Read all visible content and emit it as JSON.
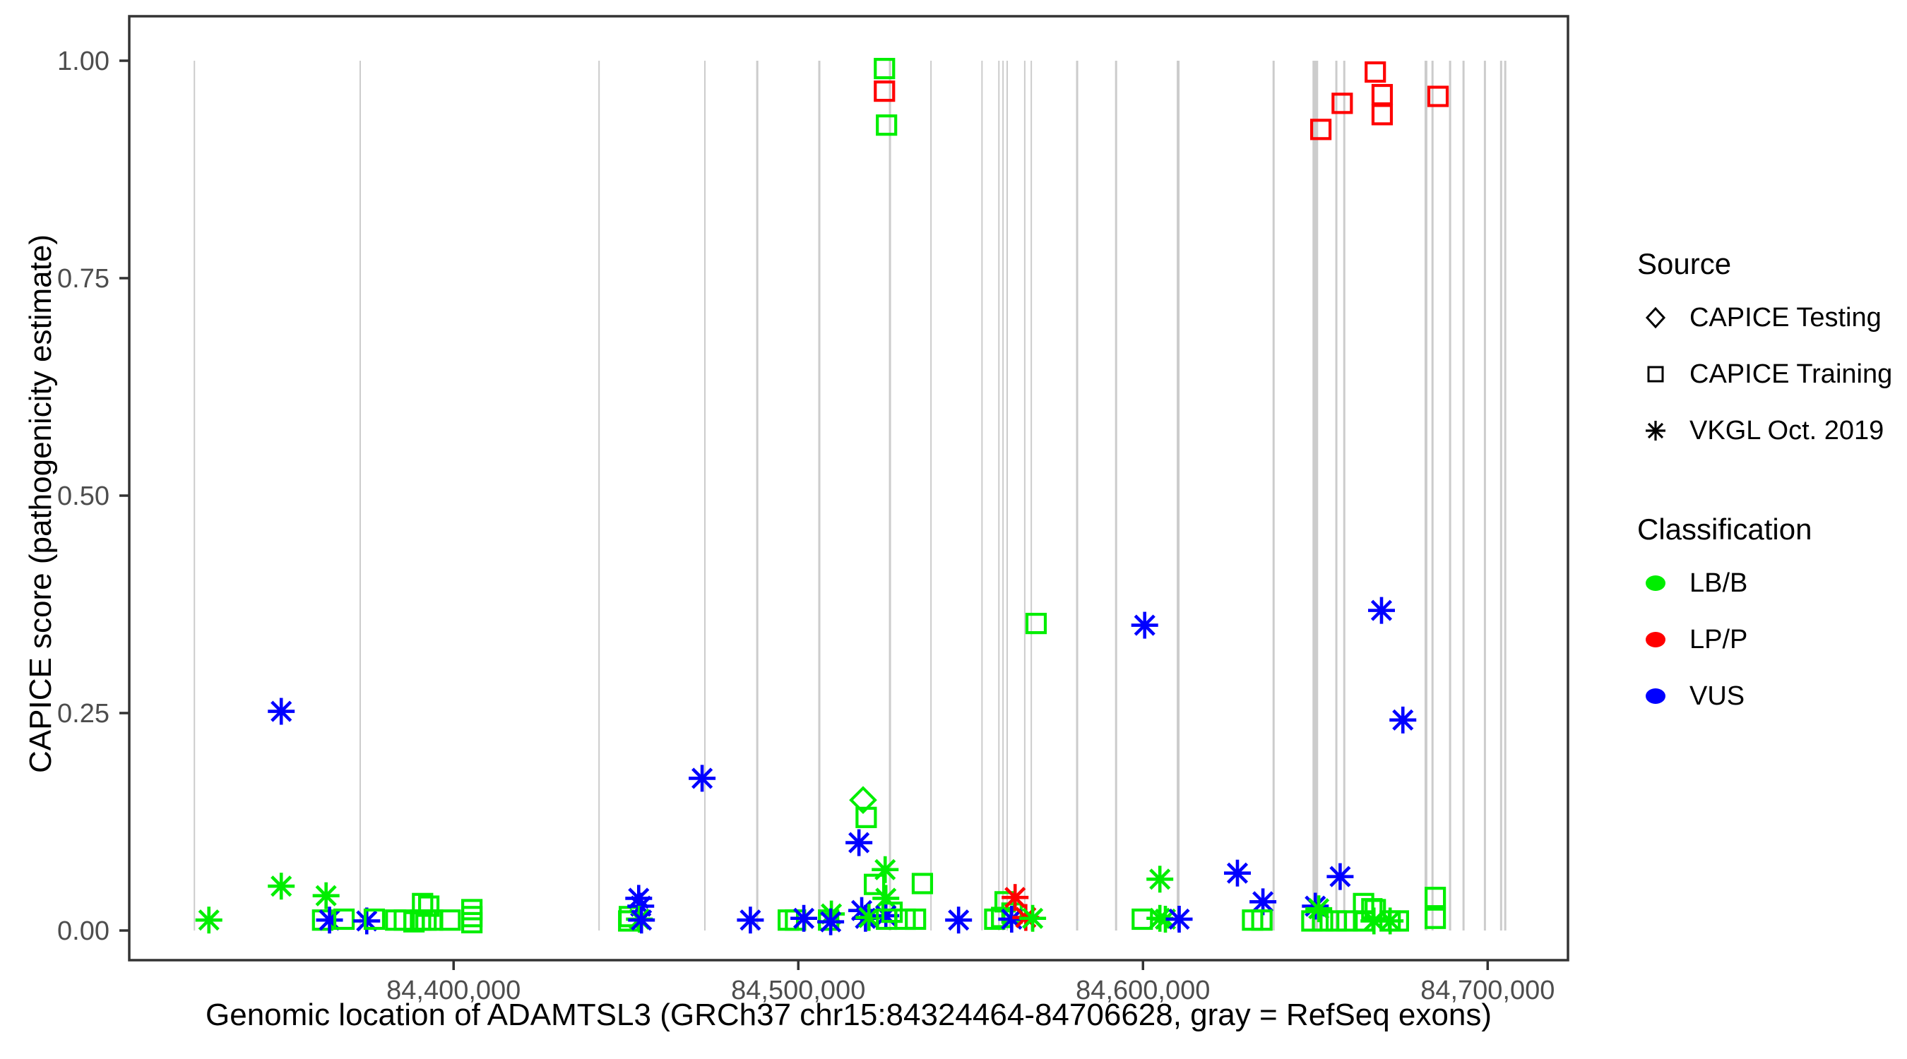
{
  "figure": {
    "y_axis_title": "CAPICE score (pathogenicity estimate)",
    "x_axis_title": "Genomic location of ADAMTSL3 (GRCh37 chr15:84324464-84706628, gray = RefSeq exons)"
  },
  "colors": {
    "LB": "#00ee00",
    "LP": "#ff0000",
    "VUS": "#0000ff",
    "exon": "#cccccc",
    "tick_text": "#4d4d4d",
    "panel_border": "#333333",
    "legend_shape": "#000000"
  },
  "legend": {
    "source": {
      "title": "Source",
      "items": [
        {
          "shape": "diamond",
          "label": "CAPICE Testing"
        },
        {
          "shape": "square",
          "label": "CAPICE Training"
        },
        {
          "shape": "asterisk",
          "label": "VKGL Oct. 2019"
        }
      ]
    },
    "classification": {
      "title": "Classification",
      "items": [
        {
          "cls": "LB",
          "label": "LB/B"
        },
        {
          "cls": "LP",
          "label": "LP/P"
        },
        {
          "cls": "VUS",
          "label": "VUS"
        }
      ]
    }
  },
  "chart_data": {
    "type": "scatter",
    "title": "",
    "xlabel": "Genomic location of ADAMTSL3 (GRCh37 chr15:84324464-84706628, gray = RefSeq exons)",
    "ylabel": "CAPICE score (pathogenicity estimate)",
    "xlim": [
      84305900,
      84723300
    ],
    "ylim": [
      0,
      1
    ],
    "grid": false,
    "legend_position": "right",
    "x_ticks": [
      {
        "v": 84400000,
        "label": "84,400,000"
      },
      {
        "v": 84500000,
        "label": "84,500,000"
      },
      {
        "v": 84600000,
        "label": "84,600,000"
      },
      {
        "v": 84700000,
        "label": "84,700,000"
      }
    ],
    "y_ticks": [
      {
        "v": 0.0,
        "label": "0.00"
      },
      {
        "v": 0.25,
        "label": "0.25"
      },
      {
        "v": 0.5,
        "label": "0.50"
      },
      {
        "v": 0.75,
        "label": "0.75"
      },
      {
        "v": 1.0,
        "label": "1.00"
      }
    ],
    "refseq_exons": [
      {
        "x": 84324800,
        "thickness": 2
      },
      {
        "x": 84372900,
        "thickness": 2
      },
      {
        "x": 84442200,
        "thickness": 2
      },
      {
        "x": 84472900,
        "thickness": 2
      },
      {
        "x": 84488100,
        "thickness": 3
      },
      {
        "x": 84506100,
        "thickness": 3
      },
      {
        "x": 84526600,
        "thickness": 3
      },
      {
        "x": 84538500,
        "thickness": 2
      },
      {
        "x": 84553300,
        "thickness": 2
      },
      {
        "x": 84558200,
        "thickness": 2
      },
      {
        "x": 84559400,
        "thickness": 2
      },
      {
        "x": 84560600,
        "thickness": 2
      },
      {
        "x": 84565700,
        "thickness": 2
      },
      {
        "x": 84567600,
        "thickness": 2
      },
      {
        "x": 84580900,
        "thickness": 3
      },
      {
        "x": 84592200,
        "thickness": 3
      },
      {
        "x": 84610200,
        "thickness": 4
      },
      {
        "x": 84637900,
        "thickness": 3
      },
      {
        "x": 84650000,
        "thickness": 8
      },
      {
        "x": 84656100,
        "thickness": 3
      },
      {
        "x": 84658400,
        "thickness": 3
      },
      {
        "x": 84682100,
        "thickness": 4
      },
      {
        "x": 84684000,
        "thickness": 3
      },
      {
        "x": 84689100,
        "thickness": 3
      },
      {
        "x": 84693000,
        "thickness": 3
      },
      {
        "x": 84699200,
        "thickness": 3
      },
      {
        "x": 84703900,
        "thickness": 3
      },
      {
        "x": 84705100,
        "thickness": 3
      }
    ],
    "points": [
      {
        "x": 84329000,
        "y": 0.012,
        "shape": "asterisk",
        "cls": "LB"
      },
      {
        "x": 84350000,
        "y": 0.252,
        "shape": "asterisk",
        "cls": "VUS"
      },
      {
        "x": 84350000,
        "y": 0.051,
        "shape": "asterisk",
        "cls": "LB"
      },
      {
        "x": 84362000,
        "y": 0.012,
        "shape": "square",
        "cls": "LB"
      },
      {
        "x": 84363000,
        "y": 0.04,
        "shape": "asterisk",
        "cls": "LB"
      },
      {
        "x": 84364000,
        "y": 0.012,
        "shape": "asterisk",
        "cls": "VUS"
      },
      {
        "x": 84368200,
        "y": 0.013,
        "shape": "square",
        "cls": "LB"
      },
      {
        "x": 84374800,
        "y": 0.011,
        "shape": "asterisk",
        "cls": "VUS"
      },
      {
        "x": 84377000,
        "y": 0.013,
        "shape": "square",
        "cls": "LB"
      },
      {
        "x": 84383200,
        "y": 0.012,
        "shape": "square",
        "cls": "LB"
      },
      {
        "x": 84385700,
        "y": 0.012,
        "shape": "square",
        "cls": "LB"
      },
      {
        "x": 84388500,
        "y": 0.01,
        "shape": "square",
        "cls": "LB"
      },
      {
        "x": 84390400,
        "y": 0.012,
        "shape": "square",
        "cls": "LB"
      },
      {
        "x": 84392000,
        "y": 0.012,
        "shape": "square",
        "cls": "LB"
      },
      {
        "x": 84393900,
        "y": 0.012,
        "shape": "square",
        "cls": "LB"
      },
      {
        "x": 84391000,
        "y": 0.031,
        "shape": "square",
        "cls": "LB"
      },
      {
        "x": 84392800,
        "y": 0.028,
        "shape": "square",
        "cls": "LB"
      },
      {
        "x": 84399000,
        "y": 0.012,
        "shape": "square",
        "cls": "LB"
      },
      {
        "x": 84405300,
        "y": 0.024,
        "shape": "square",
        "cls": "LB"
      },
      {
        "x": 84405300,
        "y": 0.016,
        "shape": "square",
        "cls": "LB"
      },
      {
        "x": 84405300,
        "y": 0.009,
        "shape": "square",
        "cls": "LB"
      },
      {
        "x": 84450800,
        "y": 0.011,
        "shape": "square",
        "cls": "LB"
      },
      {
        "x": 84451000,
        "y": 0.016,
        "shape": "square",
        "cls": "LB"
      },
      {
        "x": 84453700,
        "y": 0.037,
        "shape": "asterisk",
        "cls": "VUS"
      },
      {
        "x": 84454300,
        "y": 0.028,
        "shape": "asterisk",
        "cls": "VUS"
      },
      {
        "x": 84453900,
        "y": 0.013,
        "shape": "asterisk",
        "cls": "LB"
      },
      {
        "x": 84454500,
        "y": 0.012,
        "shape": "asterisk",
        "cls": "VUS"
      },
      {
        "x": 84472100,
        "y": 0.175,
        "shape": "asterisk",
        "cls": "VUS"
      },
      {
        "x": 84486100,
        "y": 0.012,
        "shape": "asterisk",
        "cls": "VUS"
      },
      {
        "x": 84497100,
        "y": 0.012,
        "shape": "square",
        "cls": "LB"
      },
      {
        "x": 84499200,
        "y": 0.012,
        "shape": "square",
        "cls": "LB"
      },
      {
        "x": 84501600,
        "y": 0.014,
        "shape": "asterisk",
        "cls": "VUS"
      },
      {
        "x": 84508800,
        "y": 0.012,
        "shape": "square",
        "cls": "LB"
      },
      {
        "x": 84509600,
        "y": 0.019,
        "shape": "asterisk",
        "cls": "LB"
      },
      {
        "x": 84509400,
        "y": 0.01,
        "shape": "asterisk",
        "cls": "VUS"
      },
      {
        "x": 84518800,
        "y": 0.15,
        "shape": "diamond",
        "cls": "LB"
      },
      {
        "x": 84519700,
        "y": 0.13,
        "shape": "square",
        "cls": "LB"
      },
      {
        "x": 84517600,
        "y": 0.101,
        "shape": "asterisk",
        "cls": "VUS"
      },
      {
        "x": 84525200,
        "y": 0.07,
        "shape": "asterisk",
        "cls": "LB"
      },
      {
        "x": 84522100,
        "y": 0.053,
        "shape": "square",
        "cls": "LB"
      },
      {
        "x": 84525400,
        "y": 0.037,
        "shape": "asterisk",
        "cls": "LB"
      },
      {
        "x": 84518400,
        "y": 0.023,
        "shape": "asterisk",
        "cls": "VUS"
      },
      {
        "x": 84519500,
        "y": 0.014,
        "shape": "asterisk",
        "cls": "VUS"
      },
      {
        "x": 84520500,
        "y": 0.015,
        "shape": "asterisk",
        "cls": "LB"
      },
      {
        "x": 84525400,
        "y": 0.017,
        "shape": "asterisk",
        "cls": "VUS"
      },
      {
        "x": 84525600,
        "y": 0.013,
        "shape": "square",
        "cls": "LB"
      },
      {
        "x": 84527200,
        "y": 0.021,
        "shape": "square",
        "cls": "LB"
      },
      {
        "x": 84531000,
        "y": 0.013,
        "shape": "square",
        "cls": "LB"
      },
      {
        "x": 84534000,
        "y": 0.013,
        "shape": "square",
        "cls": "LB"
      },
      {
        "x": 84536000,
        "y": 0.054,
        "shape": "square",
        "cls": "LB"
      },
      {
        "x": 84546500,
        "y": 0.012,
        "shape": "asterisk",
        "cls": "VUS"
      },
      {
        "x": 84525000,
        "y": 0.991,
        "shape": "square",
        "cls": "LB"
      },
      {
        "x": 84525000,
        "y": 0.965,
        "shape": "square",
        "cls": "LP"
      },
      {
        "x": 84525600,
        "y": 0.926,
        "shape": "square",
        "cls": "LB"
      },
      {
        "x": 84557000,
        "y": 0.013,
        "shape": "square",
        "cls": "LB"
      },
      {
        "x": 84559000,
        "y": 0.015,
        "shape": "square",
        "cls": "LB"
      },
      {
        "x": 84560000,
        "y": 0.033,
        "shape": "square",
        "cls": "LB"
      },
      {
        "x": 84562000,
        "y": 0.02,
        "shape": "square",
        "cls": "LB"
      },
      {
        "x": 84561900,
        "y": 0.013,
        "shape": "asterisk",
        "cls": "VUS"
      },
      {
        "x": 84562900,
        "y": 0.038,
        "shape": "asterisk",
        "cls": "LP"
      },
      {
        "x": 84566000,
        "y": 0.015,
        "shape": "asterisk",
        "cls": "LP"
      },
      {
        "x": 84568000,
        "y": 0.014,
        "shape": "asterisk",
        "cls": "LB"
      },
      {
        "x": 84569000,
        "y": 0.353,
        "shape": "square",
        "cls": "LB"
      },
      {
        "x": 84600500,
        "y": 0.351,
        "shape": "asterisk",
        "cls": "VUS"
      },
      {
        "x": 84599800,
        "y": 0.013,
        "shape": "square",
        "cls": "LB"
      },
      {
        "x": 84604900,
        "y": 0.059,
        "shape": "asterisk",
        "cls": "LB"
      },
      {
        "x": 84604900,
        "y": 0.014,
        "shape": "asterisk",
        "cls": "LB"
      },
      {
        "x": 84606500,
        "y": 0.013,
        "shape": "asterisk",
        "cls": "LB"
      },
      {
        "x": 84610500,
        "y": 0.013,
        "shape": "asterisk",
        "cls": "VUS"
      },
      {
        "x": 84627400,
        "y": 0.066,
        "shape": "asterisk",
        "cls": "VUS"
      },
      {
        "x": 84634800,
        "y": 0.033,
        "shape": "asterisk",
        "cls": "VUS"
      },
      {
        "x": 84631800,
        "y": 0.012,
        "shape": "square",
        "cls": "LB"
      },
      {
        "x": 84634500,
        "y": 0.012,
        "shape": "square",
        "cls": "LB"
      },
      {
        "x": 84650000,
        "y": 0.028,
        "shape": "asterisk",
        "cls": "VUS"
      },
      {
        "x": 84651000,
        "y": 0.025,
        "shape": "asterisk",
        "cls": "LB"
      },
      {
        "x": 84649000,
        "y": 0.011,
        "shape": "square",
        "cls": "LB"
      },
      {
        "x": 84652100,
        "y": 0.011,
        "shape": "square",
        "cls": "LB"
      },
      {
        "x": 84657200,
        "y": 0.062,
        "shape": "asterisk",
        "cls": "VUS"
      },
      {
        "x": 84656100,
        "y": 0.011,
        "shape": "square",
        "cls": "LB"
      },
      {
        "x": 84659200,
        "y": 0.011,
        "shape": "square",
        "cls": "LB"
      },
      {
        "x": 84664000,
        "y": 0.031,
        "shape": "square",
        "cls": "LB"
      },
      {
        "x": 84666400,
        "y": 0.025,
        "shape": "square",
        "cls": "LB"
      },
      {
        "x": 84667400,
        "y": 0.024,
        "shape": "square",
        "cls": "LB"
      },
      {
        "x": 84664000,
        "y": 0.011,
        "shape": "square",
        "cls": "LB"
      },
      {
        "x": 84667000,
        "y": 0.011,
        "shape": "asterisk",
        "cls": "LB"
      },
      {
        "x": 84671700,
        "y": 0.011,
        "shape": "square",
        "cls": "LB"
      },
      {
        "x": 84671700,
        "y": 0.011,
        "shape": "asterisk",
        "cls": "LB"
      },
      {
        "x": 84674100,
        "y": 0.011,
        "shape": "square",
        "cls": "LB"
      },
      {
        "x": 84684800,
        "y": 0.038,
        "shape": "square",
        "cls": "LB"
      },
      {
        "x": 84684800,
        "y": 0.014,
        "shape": "square",
        "cls": "LB"
      },
      {
        "x": 84651600,
        "y": 0.921,
        "shape": "square",
        "cls": "LP"
      },
      {
        "x": 84657800,
        "y": 0.951,
        "shape": "square",
        "cls": "LP"
      },
      {
        "x": 84667400,
        "y": 0.987,
        "shape": "square",
        "cls": "LP"
      },
      {
        "x": 84669400,
        "y": 0.961,
        "shape": "square",
        "cls": "LP"
      },
      {
        "x": 84669400,
        "y": 0.938,
        "shape": "square",
        "cls": "LP"
      },
      {
        "x": 84685600,
        "y": 0.959,
        "shape": "square",
        "cls": "LP"
      },
      {
        "x": 84669200,
        "y": 0.368,
        "shape": "asterisk",
        "cls": "VUS"
      },
      {
        "x": 84675400,
        "y": 0.242,
        "shape": "asterisk",
        "cls": "VUS"
      }
    ]
  }
}
